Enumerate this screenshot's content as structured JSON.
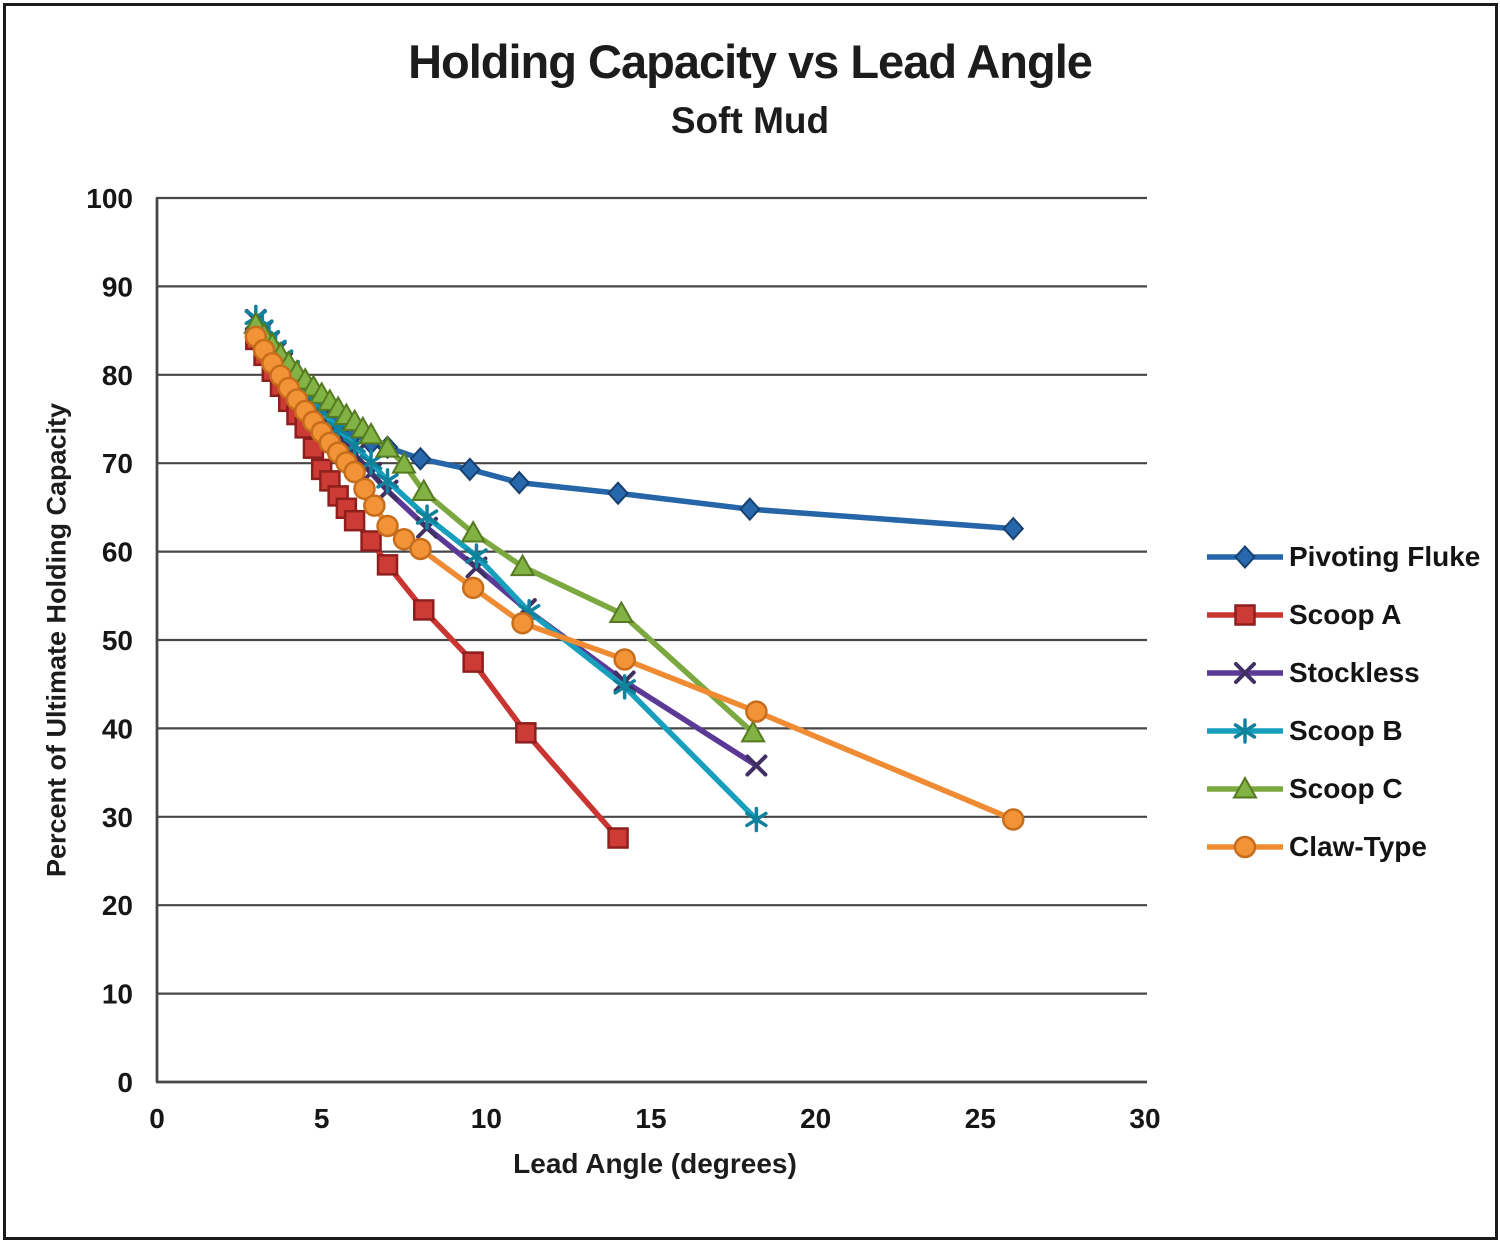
{
  "chart_data": {
    "type": "line",
    "title": "Holding Capacity vs Lead Angle",
    "subtitle": "Soft Mud",
    "xlabel": "Lead Angle (degrees)",
    "ylabel": "Percent of Ultimate Holding Capacity",
    "xlim": [
      0,
      30
    ],
    "ylim": [
      0,
      100
    ],
    "x_ticks": [
      0,
      5,
      10,
      15,
      20,
      25,
      30
    ],
    "y_ticks": [
      0,
      10,
      20,
      30,
      40,
      50,
      60,
      70,
      80,
      90,
      100
    ],
    "grid": "horizontal",
    "gridline_color": "#474747",
    "background": "#ffffff",
    "legend_position": "right",
    "series": [
      {
        "id": "pivoting-fluke",
        "name": "Pivoting Fluke",
        "marker": "diamond",
        "color": "#2565a8",
        "marker_fill": "#2767ac",
        "marker_stroke": "#16416f",
        "points": [
          [
            3,
            84.8
          ],
          [
            3.25,
            83.4
          ],
          [
            3.5,
            82.1
          ],
          [
            3.75,
            81.0
          ],
          [
            4,
            80.0
          ],
          [
            4.25,
            79.1
          ],
          [
            4.5,
            78.2
          ],
          [
            4.75,
            77.3
          ],
          [
            5,
            76.4
          ],
          [
            5.25,
            75.5
          ],
          [
            5.5,
            74.7
          ],
          [
            6,
            73.4
          ],
          [
            6.5,
            72.3
          ],
          [
            7,
            71.8
          ],
          [
            8,
            70.5
          ],
          [
            9.5,
            69.3
          ],
          [
            11,
            67.8
          ],
          [
            14,
            66.6
          ],
          [
            18,
            64.8
          ],
          [
            26,
            62.6
          ]
        ]
      },
      {
        "id": "scoop-a",
        "name": "Scoop A",
        "marker": "square",
        "color": "#c93531",
        "marker_fill": "#cc3b35",
        "marker_stroke": "#8e1f1c",
        "points": [
          [
            3,
            84.0
          ],
          [
            3.25,
            82.2
          ],
          [
            3.5,
            80.4
          ],
          [
            3.75,
            78.7
          ],
          [
            4,
            77.0
          ],
          [
            4.25,
            75.5
          ],
          [
            4.5,
            74.0
          ],
          [
            4.75,
            71.7
          ],
          [
            5,
            69.3
          ],
          [
            5.25,
            68.0
          ],
          [
            5.5,
            66.3
          ],
          [
            5.75,
            64.9
          ],
          [
            6,
            63.5
          ],
          [
            6.5,
            61.2
          ],
          [
            7,
            58.5
          ],
          [
            8.1,
            53.4
          ],
          [
            9.6,
            47.5
          ],
          [
            11.2,
            39.5
          ],
          [
            14,
            27.6
          ]
        ]
      },
      {
        "id": "stockless",
        "name": "Stockless",
        "marker": "x",
        "color": "#5a3a96",
        "marker_fill": "#5a3a96",
        "marker_stroke": "#413063",
        "points": [
          [
            3,
            86.2
          ],
          [
            3.2,
            85.0
          ],
          [
            3.4,
            83.8
          ],
          [
            3.6,
            82.6
          ],
          [
            3.8,
            81.4
          ],
          [
            4,
            80.2
          ],
          [
            4.25,
            79.0
          ],
          [
            4.5,
            77.8
          ],
          [
            4.75,
            76.6
          ],
          [
            5,
            75.4
          ],
          [
            5.5,
            73.2
          ],
          [
            6,
            71.0
          ],
          [
            6.5,
            68.9
          ],
          [
            7,
            66.9
          ],
          [
            8.2,
            62.7
          ],
          [
            9.7,
            58.2
          ],
          [
            11.2,
            53.5
          ],
          [
            14.2,
            45.3
          ],
          [
            18.2,
            35.8
          ]
        ]
      },
      {
        "id": "scoop-b",
        "name": "Scoop B",
        "marker": "asterisk",
        "color": "#179fbd",
        "marker_fill": "#179fbd",
        "marker_stroke": "#11829c",
        "points": [
          [
            3,
            86.5
          ],
          [
            3.2,
            85.4
          ],
          [
            3.4,
            84.2
          ],
          [
            3.6,
            83.1
          ],
          [
            3.8,
            82.0
          ],
          [
            4,
            80.8
          ],
          [
            4.25,
            79.5
          ],
          [
            4.5,
            78.3
          ],
          [
            4.75,
            77.1
          ],
          [
            5,
            75.9
          ],
          [
            5.5,
            73.9
          ],
          [
            6,
            72.0
          ],
          [
            6.5,
            70.1
          ],
          [
            7,
            68.0
          ],
          [
            8.2,
            63.9
          ],
          [
            9.7,
            59.5
          ],
          [
            11.3,
            53.2
          ],
          [
            14.2,
            44.7
          ],
          [
            18.2,
            29.7
          ]
        ]
      },
      {
        "id": "scoop-c",
        "name": "Scoop C",
        "marker": "triangle",
        "color": "#7ba83f",
        "marker_fill": "#82b244",
        "marker_stroke": "#567a21",
        "points": [
          [
            3,
            85.7
          ],
          [
            3.25,
            84.5
          ],
          [
            3.5,
            83.4
          ],
          [
            3.75,
            82.3
          ],
          [
            4,
            81.3
          ],
          [
            4.25,
            80.3
          ],
          [
            4.5,
            79.4
          ],
          [
            4.75,
            78.6
          ],
          [
            5,
            77.8
          ],
          [
            5.25,
            77.0
          ],
          [
            5.5,
            76.2
          ],
          [
            5.75,
            75.4
          ],
          [
            6,
            74.7
          ],
          [
            6.25,
            73.9
          ],
          [
            6.5,
            73.2
          ],
          [
            7,
            71.7
          ],
          [
            7.5,
            69.9
          ],
          [
            8.1,
            66.8
          ],
          [
            9.6,
            62.1
          ],
          [
            11.1,
            58.3
          ],
          [
            14.1,
            53.0
          ],
          [
            18.1,
            39.5
          ]
        ]
      },
      {
        "id": "claw-type",
        "name": "Claw-Type",
        "marker": "circle",
        "color": "#ef8b33",
        "marker_fill": "#f29338",
        "marker_stroke": "#c66d1b",
        "points": [
          [
            3,
            84.3
          ],
          [
            3.25,
            82.8
          ],
          [
            3.5,
            81.3
          ],
          [
            3.75,
            79.9
          ],
          [
            4,
            78.5
          ],
          [
            4.25,
            77.2
          ],
          [
            4.5,
            75.9
          ],
          [
            4.75,
            74.7
          ],
          [
            5,
            73.5
          ],
          [
            5.25,
            72.3
          ],
          [
            5.5,
            71.2
          ],
          [
            5.75,
            70.1
          ],
          [
            6,
            69.0
          ],
          [
            6.3,
            67.1
          ],
          [
            6.6,
            65.2
          ],
          [
            7,
            62.9
          ],
          [
            7.5,
            61.4
          ],
          [
            8,
            60.3
          ],
          [
            9.6,
            55.9
          ],
          [
            11.1,
            51.9
          ],
          [
            14.2,
            47.8
          ],
          [
            18.2,
            41.9
          ],
          [
            26,
            29.7
          ]
        ]
      }
    ]
  }
}
